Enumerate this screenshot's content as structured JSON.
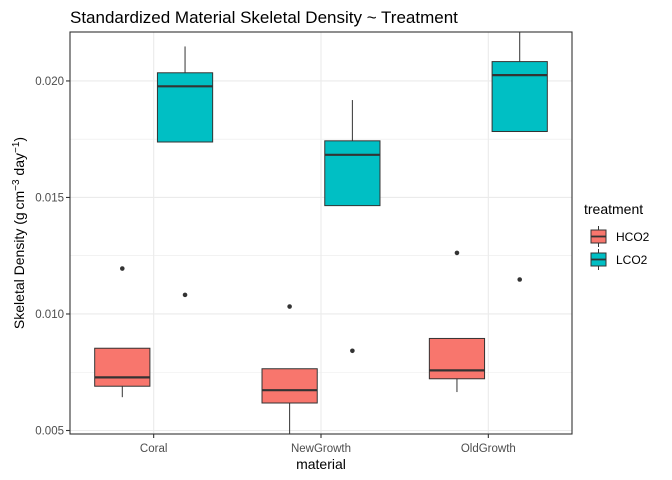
{
  "chart_data": {
    "type": "boxplot",
    "title": "Standardized Material Skeletal Density ~ Treatment",
    "xlabel": "material",
    "ylabel": {
      "prefix": "Skeletal Density (g cm",
      "sup1": "−3",
      "middle": " day",
      "sup2": "−1",
      "suffix": ")"
    },
    "categories": [
      "Coral",
      "NewGrowth",
      "OldGrowth"
    ],
    "ylim": [
      0.00485,
      0.0221
    ],
    "yticks": [
      0.005,
      0.01,
      0.015,
      0.02
    ],
    "ytick_labels": [
      "0.005",
      "0.010",
      "0.015",
      "0.020"
    ],
    "grid": true,
    "legend": {
      "title": "treatment",
      "position": "right",
      "entries": [
        {
          "name": "HCO2",
          "color": "#F8766D"
        },
        {
          "name": "LCO2",
          "color": "#00BFC4"
        }
      ]
    },
    "series": [
      {
        "name": "HCO2",
        "color": "#F8766D",
        "boxes": [
          {
            "category": "Coral",
            "lower_whisker": 0.00643,
            "q1": 0.0069,
            "median": 0.00728,
            "q3": 0.00853,
            "upper_whisker": 0.00853,
            "outliers": [
              0.01195
            ]
          },
          {
            "category": "NewGrowth",
            "lower_whisker": 0.00485,
            "q1": 0.00618,
            "median": 0.00673,
            "q3": 0.00765,
            "upper_whisker": 0.00765,
            "outliers": [
              0.01032
            ]
          },
          {
            "category": "OldGrowth",
            "lower_whisker": 0.00665,
            "q1": 0.00722,
            "median": 0.00758,
            "q3": 0.00895,
            "upper_whisker": 0.00895,
            "outliers": [
              0.01262
            ]
          }
        ]
      },
      {
        "name": "LCO2",
        "color": "#00BFC4",
        "boxes": [
          {
            "category": "Coral",
            "lower_whisker": 0.01738,
            "q1": 0.01738,
            "median": 0.01977,
            "q3": 0.02035,
            "upper_whisker": 0.02148,
            "outliers": [
              0.01082
            ]
          },
          {
            "category": "NewGrowth",
            "lower_whisker": 0.01465,
            "q1": 0.01465,
            "median": 0.01683,
            "q3": 0.01743,
            "upper_whisker": 0.01918,
            "outliers": [
              0.00842
            ]
          },
          {
            "category": "OldGrowth",
            "lower_whisker": 0.01783,
            "q1": 0.01783,
            "median": 0.02025,
            "q3": 0.02083,
            "upper_whisker": 0.0221,
            "outliers": [
              0.01148
            ]
          }
        ]
      }
    ]
  }
}
